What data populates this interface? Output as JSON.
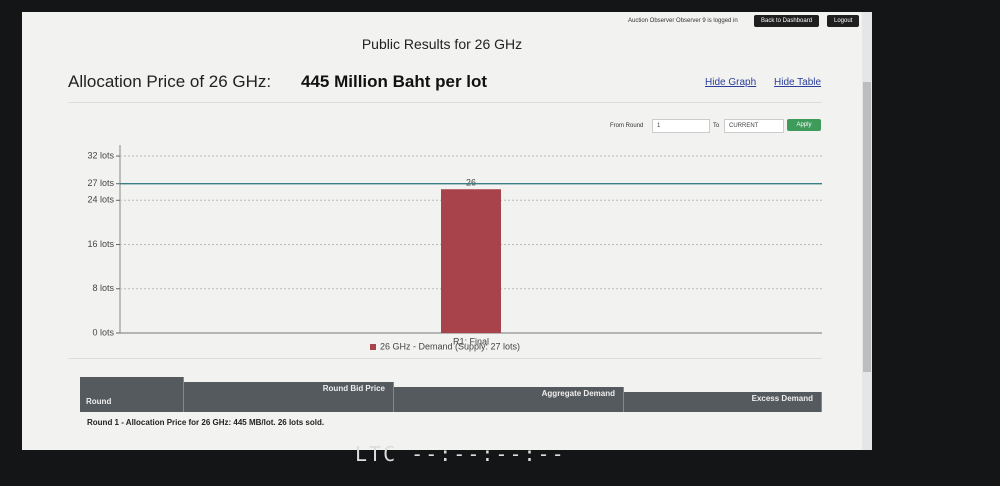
{
  "header": {
    "user_status": "Auction Observer Observer 9 is logged in",
    "dashboard_button": "Back to Dashboard",
    "logout_button": "Logout",
    "page_title": "Public Results for 26 GHz",
    "price_label": "Allocation Price of 26 GHz:",
    "price_value": "445 Million Baht per lot",
    "hide_graph": "Hide Graph",
    "hide_table": "Hide Table"
  },
  "filter": {
    "from_label": "From Round",
    "from_value": "1",
    "to_label": "To",
    "to_value": "CURRENT",
    "apply": "Apply"
  },
  "chart_data": {
    "type": "bar",
    "categories": [
      "R1: Final"
    ],
    "series": [
      {
        "name": "26 GHz - Demand (Supply: 27 lots)",
        "color": "#a8434b",
        "values": [
          26
        ]
      }
    ],
    "ylim": [
      0,
      34
    ],
    "yticks": [
      {
        "value": 0,
        "label": "0 lots"
      },
      {
        "value": 8,
        "label": "8 lots"
      },
      {
        "value": 16,
        "label": "16 lots"
      },
      {
        "value": 24,
        "label": "24 lots"
      },
      {
        "value": 27,
        "label": "27 lots"
      },
      {
        "value": 32,
        "label": "32 lots"
      }
    ],
    "supply_line": {
      "value": 27,
      "color": "#3b7f86"
    },
    "grid": true
  },
  "table": {
    "headers": [
      "Round",
      "Round Bid Price",
      "Aggregate Demand",
      "Excess Demand"
    ],
    "rows": [
      [
        "Round 1 - Allocation Price for 26 GHz: 445 MB/lot. 26 lots sold."
      ]
    ]
  },
  "footer": {
    "clock": "LTC --:--:--:--"
  }
}
